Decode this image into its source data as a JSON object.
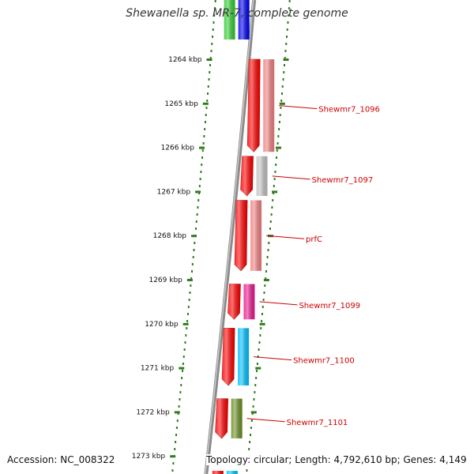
{
  "title": "Shewanella sp. MR-7, complete genome",
  "footer": {
    "accession": "Accession: NC_008322",
    "topology": "Topology: circular; Length: 4,792,610 bp; Genes: 4,149"
  },
  "colors": {
    "backbone": "#8a8a8a",
    "ticks": "#2e7d1e",
    "forward_cds": "#ff0000",
    "label": "#cc0000",
    "gene_colors": [
      "#f08080",
      "#c0c0c0",
      "#f08080",
      "#e8188c",
      "#00bfff",
      "#6b8e23"
    ]
  },
  "chart_data": {
    "type": "diagram",
    "subtype": "linear genome map section",
    "axis_unit": "kbp",
    "axis_range": [
      1263.5,
      1273.3
    ],
    "tick_labels": [
      "1264 kbp",
      "1265 kbp",
      "1266 kbp",
      "1267 kbp",
      "1268 kbp",
      "1269 kbp",
      "1270 kbp",
      "1271 kbp",
      "1272 kbp",
      "1273 kbp"
    ],
    "tick_values": [
      1264,
      1265,
      1266,
      1267,
      1268,
      1269,
      1270,
      1271,
      1272,
      1273
    ],
    "genes": [
      {
        "label": "Shewmr7_1096",
        "start": 1264.0,
        "end": 1266.1
      },
      {
        "label": "Shewmr7_1097",
        "start": 1266.2,
        "end": 1267.1
      },
      {
        "label": "prfC",
        "start": 1267.2,
        "end": 1268.8
      },
      {
        "label": "Shewmr7_1099",
        "start": 1269.1,
        "end": 1269.9
      },
      {
        "label": "Shewmr7_1100",
        "start": 1270.1,
        "end": 1271.4
      },
      {
        "label": "Shewmr7_1101",
        "start": 1271.7,
        "end": 1272.6
      }
    ]
  }
}
